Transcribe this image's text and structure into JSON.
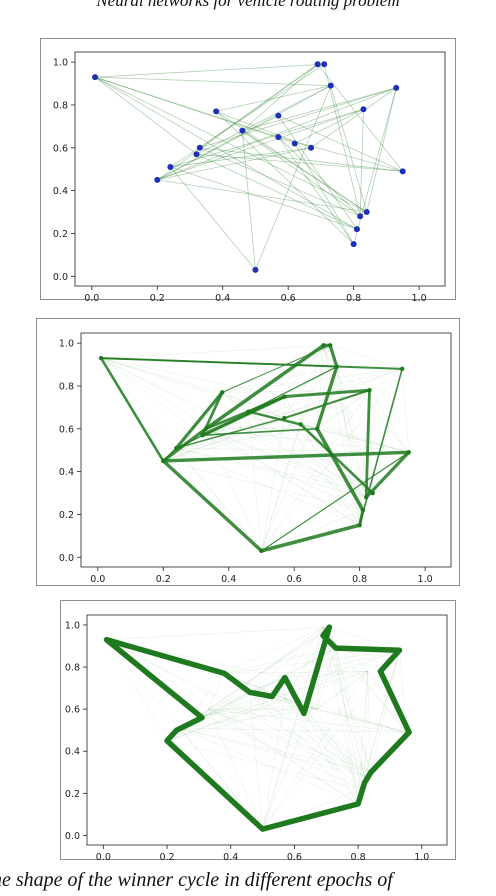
{
  "header_text": "Neural networks for vehicle routing problem",
  "caption_text": "he shape of the winner cycle in different epochs of",
  "colors": {
    "edge": "#1f7a1f",
    "node": "#1f2fb8",
    "axis": "#222222"
  },
  "chart_data": [
    {
      "type": "scatter",
      "title": "",
      "xlabel": "",
      "ylabel": "",
      "xlim": [
        0.0,
        1.0
      ],
      "ylim": [
        0.0,
        1.0
      ],
      "xticks": [
        "0.0",
        "0.2",
        "0.4",
        "0.6",
        "0.8",
        "1.0"
      ],
      "yticks": [
        "0.0",
        "0.2",
        "0.4",
        "0.6",
        "0.8",
        "1.0"
      ],
      "grid": false,
      "points": [
        [
          0.01,
          0.93
        ],
        [
          0.2,
          0.45
        ],
        [
          0.24,
          0.51
        ],
        [
          0.32,
          0.57
        ],
        [
          0.33,
          0.6
        ],
        [
          0.38,
          0.77
        ],
        [
          0.46,
          0.68
        ],
        [
          0.5,
          0.03
        ],
        [
          0.57,
          0.65
        ],
        [
          0.57,
          0.75
        ],
        [
          0.62,
          0.62
        ],
        [
          0.67,
          0.6
        ],
        [
          0.69,
          0.99
        ],
        [
          0.71,
          0.99
        ],
        [
          0.73,
          0.89
        ],
        [
          0.8,
          0.15
        ],
        [
          0.81,
          0.22
        ],
        [
          0.82,
          0.28
        ],
        [
          0.83,
          0.78
        ],
        [
          0.84,
          0.3
        ],
        [
          0.93,
          0.88
        ],
        [
          0.95,
          0.49
        ]
      ],
      "edges": [
        [
          0,
          8
        ],
        [
          0,
          3
        ],
        [
          0,
          19
        ],
        [
          0,
          16
        ],
        [
          0,
          13
        ],
        [
          1,
          12
        ],
        [
          1,
          19
        ],
        [
          1,
          14
        ],
        [
          2,
          18
        ],
        [
          2,
          16
        ],
        [
          2,
          13
        ],
        [
          3,
          14
        ],
        [
          3,
          16
        ],
        [
          4,
          12
        ],
        [
          4,
          17
        ],
        [
          4,
          20
        ],
        [
          5,
          15
        ],
        [
          5,
          11
        ],
        [
          5,
          19
        ],
        [
          6,
          17
        ],
        [
          6,
          12
        ],
        [
          6,
          20
        ],
        [
          7,
          2
        ],
        [
          7,
          6
        ],
        [
          7,
          14
        ],
        [
          8,
          17
        ],
        [
          8,
          21
        ],
        [
          8,
          15
        ],
        [
          9,
          1
        ],
        [
          9,
          16
        ],
        [
          9,
          21
        ],
        [
          10,
          0
        ],
        [
          10,
          15
        ],
        [
          10,
          18
        ],
        [
          11,
          2
        ],
        [
          11,
          20
        ],
        [
          12,
          21
        ],
        [
          13,
          17
        ],
        [
          14,
          5
        ],
        [
          14,
          19
        ],
        [
          15,
          20
        ],
        [
          17,
          18
        ],
        [
          18,
          1
        ],
        [
          19,
          20
        ],
        [
          20,
          1
        ],
        [
          21,
          4
        ],
        [
          3,
          21
        ],
        [
          0,
          14
        ],
        [
          1,
          11
        ],
        [
          6,
          19
        ]
      ],
      "edge_weights": [],
      "tour": []
    },
    {
      "type": "scatter",
      "title": "",
      "xlabel": "",
      "ylabel": "",
      "xlim": [
        0.0,
        1.0
      ],
      "ylim": [
        0.0,
        1.0
      ],
      "xticks": [
        "0.0",
        "0.2",
        "0.4",
        "0.6",
        "0.8",
        "1.0"
      ],
      "yticks": [
        "0.0",
        "0.2",
        "0.4",
        "0.6",
        "0.8",
        "1.0"
      ],
      "grid": false,
      "points": [
        [
          0.01,
          0.93
        ],
        [
          0.2,
          0.45
        ],
        [
          0.24,
          0.51
        ],
        [
          0.32,
          0.57
        ],
        [
          0.33,
          0.6
        ],
        [
          0.38,
          0.77
        ],
        [
          0.46,
          0.68
        ],
        [
          0.5,
          0.03
        ],
        [
          0.57,
          0.65
        ],
        [
          0.57,
          0.75
        ],
        [
          0.62,
          0.62
        ],
        [
          0.67,
          0.6
        ],
        [
          0.69,
          0.99
        ],
        [
          0.71,
          0.99
        ],
        [
          0.73,
          0.89
        ],
        [
          0.8,
          0.15
        ],
        [
          0.81,
          0.22
        ],
        [
          0.82,
          0.28
        ],
        [
          0.83,
          0.78
        ],
        [
          0.84,
          0.3
        ],
        [
          0.93,
          0.88
        ],
        [
          0.95,
          0.49
        ]
      ],
      "edges": [
        [
          0,
          1
        ],
        [
          1,
          4
        ],
        [
          4,
          12
        ],
        [
          12,
          13
        ],
        [
          13,
          14
        ],
        [
          14,
          11
        ],
        [
          11,
          16
        ],
        [
          16,
          15
        ],
        [
          15,
          7
        ],
        [
          7,
          1
        ],
        [
          1,
          21
        ],
        [
          21,
          17
        ],
        [
          17,
          18
        ],
        [
          18,
          9
        ],
        [
          9,
          3
        ],
        [
          3,
          5
        ],
        [
          5,
          2
        ],
        [
          2,
          1
        ],
        [
          0,
          20
        ],
        [
          20,
          15
        ],
        [
          4,
          9
        ],
        [
          6,
          10
        ],
        [
          10,
          19
        ],
        [
          8,
          18
        ],
        [
          6,
          14
        ],
        [
          3,
          11
        ],
        [
          2,
          9
        ],
        [
          0,
          14
        ],
        [
          5,
          13
        ],
        [
          7,
          21
        ],
        [
          8,
          2
        ]
      ],
      "edge_weights": [
        2.6,
        3.2,
        3.5,
        3.0,
        3.2,
        3.4,
        3.6,
        3.0,
        3.6,
        3.4,
        3.4,
        3.2,
        2.8,
        3.0,
        3.4,
        2.8,
        3.2,
        1.6,
        2.0,
        1.6,
        2.6,
        2.4,
        2.6,
        2.0,
        1.2,
        1.6,
        1.4,
        1.2,
        1.0,
        1.2,
        1.4
      ],
      "tour": []
    },
    {
      "type": "scatter",
      "title": "",
      "xlabel": "",
      "ylabel": "",
      "xlim": [
        0.0,
        1.0
      ],
      "ylim": [
        0.0,
        1.0
      ],
      "xticks": [
        "0.0",
        "0.2",
        "0.4",
        "0.6",
        "0.8",
        "1.0"
      ],
      "yticks": [
        "0.0",
        "0.2",
        "0.4",
        "0.6",
        "0.8",
        "1.0"
      ],
      "grid": false,
      "points": [
        [
          0.01,
          0.93
        ],
        [
          0.2,
          0.45
        ],
        [
          0.24,
          0.51
        ],
        [
          0.32,
          0.57
        ],
        [
          0.33,
          0.6
        ],
        [
          0.38,
          0.77
        ],
        [
          0.46,
          0.68
        ],
        [
          0.5,
          0.03
        ],
        [
          0.57,
          0.65
        ],
        [
          0.57,
          0.75
        ],
        [
          0.62,
          0.62
        ],
        [
          0.67,
          0.6
        ],
        [
          0.69,
          0.99
        ],
        [
          0.71,
          0.99
        ],
        [
          0.73,
          0.89
        ],
        [
          0.8,
          0.15
        ],
        [
          0.81,
          0.22
        ],
        [
          0.82,
          0.28
        ],
        [
          0.83,
          0.78
        ],
        [
          0.84,
          0.3
        ],
        [
          0.93,
          0.88
        ],
        [
          0.95,
          0.49
        ]
      ],
      "edges": [],
      "edge_weights": [],
      "tour": [
        [
          0.01,
          0.93
        ],
        [
          0.38,
          0.77
        ],
        [
          0.46,
          0.68
        ],
        [
          0.53,
          0.66
        ],
        [
          0.57,
          0.75
        ],
        [
          0.63,
          0.58
        ],
        [
          0.71,
          0.99
        ],
        [
          0.69,
          0.95
        ],
        [
          0.73,
          0.89
        ],
        [
          0.93,
          0.88
        ],
        [
          0.87,
          0.78
        ],
        [
          0.96,
          0.49
        ],
        [
          0.84,
          0.3
        ],
        [
          0.82,
          0.25
        ],
        [
          0.81,
          0.2
        ],
        [
          0.8,
          0.15
        ],
        [
          0.5,
          0.03
        ],
        [
          0.2,
          0.45
        ],
        [
          0.23,
          0.5
        ],
        [
          0.31,
          0.56
        ],
        [
          0.01,
          0.93
        ]
      ]
    }
  ]
}
